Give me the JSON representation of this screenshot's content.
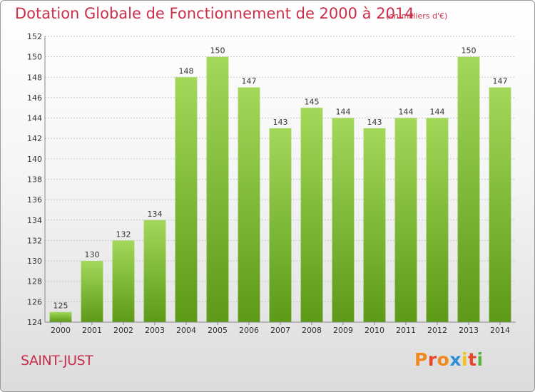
{
  "title": "Dotation Globale de Fonctionnement de 2000 à 2014",
  "unit_note": "(en milliers d'€)",
  "commune": "SAINT-JUST",
  "logo": {
    "text": "Proxiti",
    "colors": [
      "#f08a1e",
      "#e8462a",
      "#f08a1e",
      "#2f8fd6",
      "#f3c21a",
      "#e8462a",
      "#5bb33c"
    ]
  },
  "colors": {
    "title": "#c8304a",
    "bar_light": "#a3d85a",
    "bar_dark": "#5c9a17",
    "grid": "#c8c8c8",
    "axis_text": "#333333"
  },
  "chart_data": {
    "type": "bar",
    "categories": [
      "2000",
      "2001",
      "2002",
      "2003",
      "2004",
      "2005",
      "2006",
      "2007",
      "2008",
      "2009",
      "2010",
      "2011",
      "2012",
      "2013",
      "2014"
    ],
    "values": [
      125,
      130,
      132,
      134,
      148,
      150,
      147,
      143,
      145,
      144,
      143,
      144,
      144,
      150,
      147
    ],
    "ylim": [
      124,
      152
    ],
    "yticks": [
      124,
      126,
      128,
      130,
      132,
      134,
      136,
      138,
      140,
      142,
      144,
      146,
      148,
      150,
      152
    ],
    "grid": true,
    "data_labels": true
  }
}
